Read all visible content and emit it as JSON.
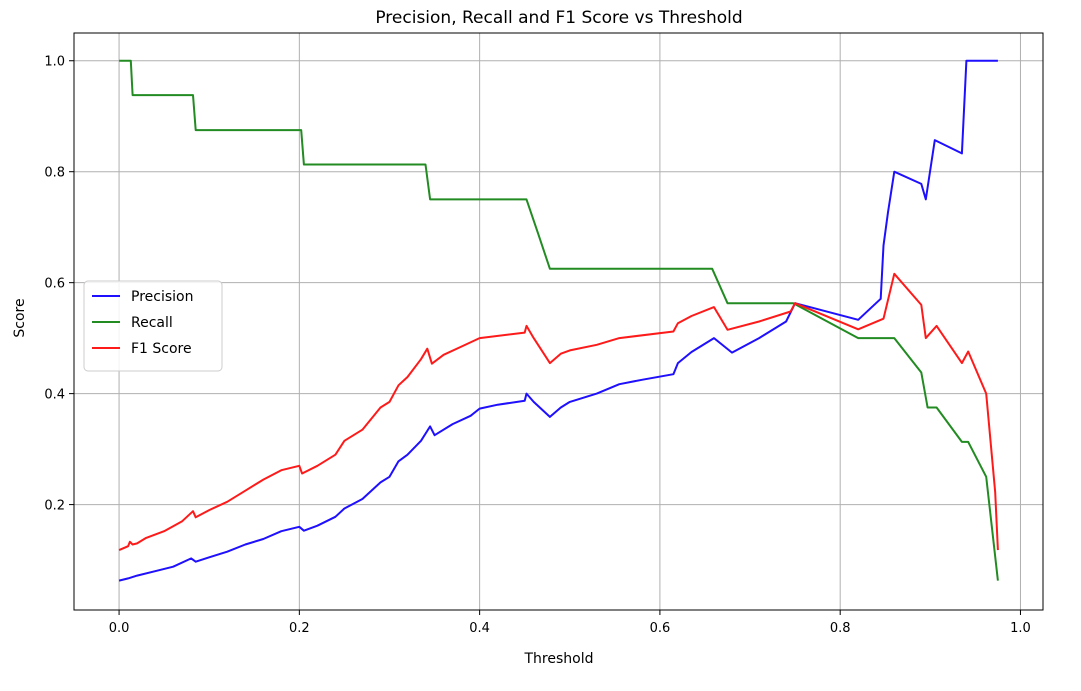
{
  "chart_data": {
    "type": "line",
    "title": "Precision, Recall and F1 Score vs Threshold",
    "xlabel": "Threshold",
    "ylabel": "Score",
    "xlim": [
      -0.05,
      1.025
    ],
    "ylim": [
      0.01,
      1.05
    ],
    "xticks": [
      {
        "value": 0.0,
        "label": "0.0"
      },
      {
        "value": 0.2,
        "label": "0.2"
      },
      {
        "value": 0.4,
        "label": "0.4"
      },
      {
        "value": 0.6,
        "label": "0.6"
      },
      {
        "value": 0.8,
        "label": "0.8"
      },
      {
        "value": 1.0,
        "label": "1.0"
      }
    ],
    "yticks": [
      {
        "value": 0.2,
        "label": "0.2"
      },
      {
        "value": 0.4,
        "label": "0.4"
      },
      {
        "value": 0.6,
        "label": "0.6"
      },
      {
        "value": 0.8,
        "label": "0.8"
      },
      {
        "value": 1.0,
        "label": "1.0"
      }
    ],
    "grid": true,
    "legend_position": "center-left",
    "series": [
      {
        "name": "Precision",
        "color": "#1f0fff",
        "points": [
          [
            0.0,
            0.063
          ],
          [
            0.01,
            0.067
          ],
          [
            0.02,
            0.072
          ],
          [
            0.04,
            0.08
          ],
          [
            0.06,
            0.088
          ],
          [
            0.08,
            0.103
          ],
          [
            0.085,
            0.097
          ],
          [
            0.1,
            0.105
          ],
          [
            0.12,
            0.115
          ],
          [
            0.14,
            0.128
          ],
          [
            0.16,
            0.138
          ],
          [
            0.18,
            0.152
          ],
          [
            0.2,
            0.16
          ],
          [
            0.205,
            0.153
          ],
          [
            0.22,
            0.162
          ],
          [
            0.24,
            0.178
          ],
          [
            0.25,
            0.193
          ],
          [
            0.27,
            0.21
          ],
          [
            0.29,
            0.24
          ],
          [
            0.3,
            0.25
          ],
          [
            0.31,
            0.278
          ],
          [
            0.32,
            0.29
          ],
          [
            0.335,
            0.315
          ],
          [
            0.345,
            0.341
          ],
          [
            0.35,
            0.325
          ],
          [
            0.37,
            0.345
          ],
          [
            0.39,
            0.36
          ],
          [
            0.4,
            0.373
          ],
          [
            0.42,
            0.38
          ],
          [
            0.45,
            0.387
          ],
          [
            0.452,
            0.4
          ],
          [
            0.46,
            0.385
          ],
          [
            0.478,
            0.358
          ],
          [
            0.49,
            0.375
          ],
          [
            0.5,
            0.385
          ],
          [
            0.53,
            0.4
          ],
          [
            0.555,
            0.417
          ],
          [
            0.58,
            0.425
          ],
          [
            0.615,
            0.435
          ],
          [
            0.62,
            0.455
          ],
          [
            0.635,
            0.475
          ],
          [
            0.66,
            0.5
          ],
          [
            0.68,
            0.474
          ],
          [
            0.71,
            0.5
          ],
          [
            0.74,
            0.53
          ],
          [
            0.75,
            0.563
          ],
          [
            0.82,
            0.533
          ],
          [
            0.845,
            0.571
          ],
          [
            0.848,
            0.667
          ],
          [
            0.853,
            0.727
          ],
          [
            0.86,
            0.8
          ],
          [
            0.89,
            0.778
          ],
          [
            0.895,
            0.75
          ],
          [
            0.905,
            0.857
          ],
          [
            0.935,
            0.833
          ],
          [
            0.94,
            1.0
          ],
          [
            0.975,
            1.0
          ]
        ]
      },
      {
        "name": "Recall",
        "color": "#228b22",
        "points": [
          [
            0.0,
            1.0
          ],
          [
            0.013,
            1.0
          ],
          [
            0.015,
            0.938
          ],
          [
            0.082,
            0.938
          ],
          [
            0.085,
            0.875
          ],
          [
            0.202,
            0.875
          ],
          [
            0.205,
            0.813
          ],
          [
            0.34,
            0.813
          ],
          [
            0.345,
            0.75
          ],
          [
            0.452,
            0.75
          ],
          [
            0.465,
            0.688
          ],
          [
            0.478,
            0.625
          ],
          [
            0.658,
            0.625
          ],
          [
            0.675,
            0.563
          ],
          [
            0.748,
            0.563
          ],
          [
            0.82,
            0.5
          ],
          [
            0.86,
            0.5
          ],
          [
            0.89,
            0.438
          ],
          [
            0.897,
            0.375
          ],
          [
            0.907,
            0.375
          ],
          [
            0.935,
            0.313
          ],
          [
            0.942,
            0.313
          ],
          [
            0.962,
            0.25
          ],
          [
            0.975,
            0.063
          ]
        ]
      },
      {
        "name": "F1 Score",
        "color": "#ff1a1a",
        "points": [
          [
            0.0,
            0.118
          ],
          [
            0.01,
            0.125
          ],
          [
            0.012,
            0.133
          ],
          [
            0.015,
            0.128
          ],
          [
            0.02,
            0.13
          ],
          [
            0.03,
            0.14
          ],
          [
            0.05,
            0.152
          ],
          [
            0.07,
            0.17
          ],
          [
            0.082,
            0.188
          ],
          [
            0.085,
            0.177
          ],
          [
            0.1,
            0.19
          ],
          [
            0.12,
            0.205
          ],
          [
            0.14,
            0.225
          ],
          [
            0.16,
            0.245
          ],
          [
            0.18,
            0.262
          ],
          [
            0.2,
            0.27
          ],
          [
            0.203,
            0.256
          ],
          [
            0.22,
            0.27
          ],
          [
            0.24,
            0.29
          ],
          [
            0.25,
            0.315
          ],
          [
            0.27,
            0.335
          ],
          [
            0.29,
            0.375
          ],
          [
            0.3,
            0.385
          ],
          [
            0.31,
            0.415
          ],
          [
            0.32,
            0.43
          ],
          [
            0.335,
            0.462
          ],
          [
            0.342,
            0.481
          ],
          [
            0.347,
            0.454
          ],
          [
            0.36,
            0.47
          ],
          [
            0.38,
            0.485
          ],
          [
            0.4,
            0.5
          ],
          [
            0.45,
            0.51
          ],
          [
            0.452,
            0.522
          ],
          [
            0.46,
            0.5
          ],
          [
            0.478,
            0.455
          ],
          [
            0.49,
            0.472
          ],
          [
            0.5,
            0.478
          ],
          [
            0.53,
            0.488
          ],
          [
            0.555,
            0.5
          ],
          [
            0.615,
            0.512
          ],
          [
            0.62,
            0.527
          ],
          [
            0.635,
            0.54
          ],
          [
            0.66,
            0.556
          ],
          [
            0.675,
            0.515
          ],
          [
            0.71,
            0.53
          ],
          [
            0.745,
            0.548
          ],
          [
            0.75,
            0.563
          ],
          [
            0.82,
            0.516
          ],
          [
            0.848,
            0.535
          ],
          [
            0.86,
            0.616
          ],
          [
            0.89,
            0.56
          ],
          [
            0.895,
            0.5
          ],
          [
            0.907,
            0.522
          ],
          [
            0.935,
            0.455
          ],
          [
            0.942,
            0.476
          ],
          [
            0.962,
            0.4
          ],
          [
            0.972,
            0.222
          ],
          [
            0.975,
            0.118
          ]
        ]
      }
    ]
  }
}
